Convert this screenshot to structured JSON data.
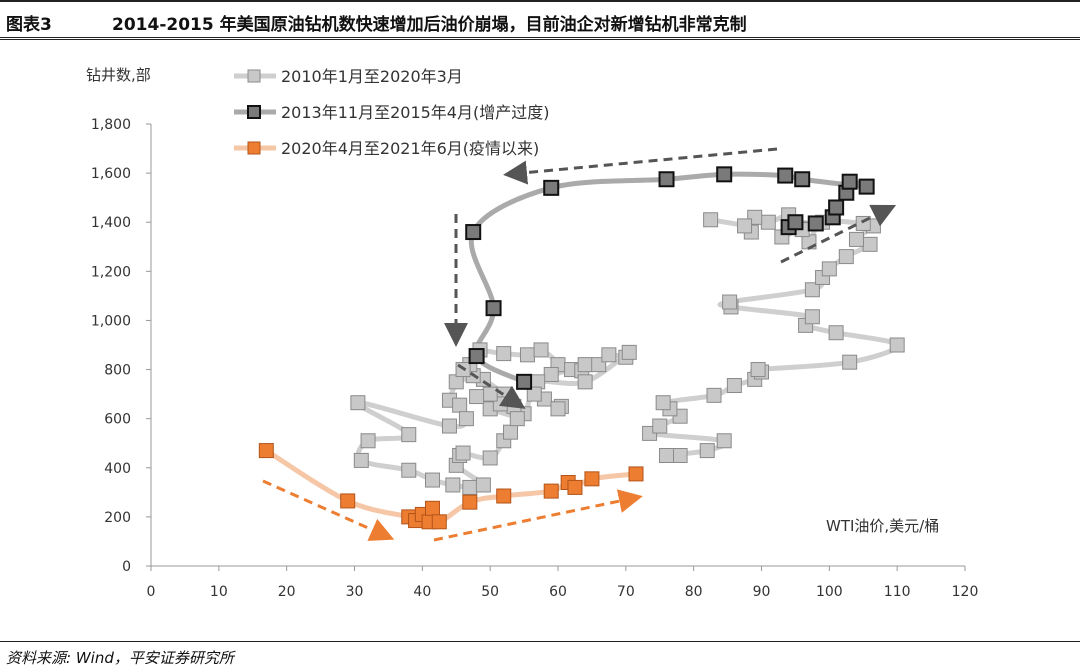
{
  "header": {
    "number": "图表3",
    "title": "2014-2015 年美国原油钻机数快速增加后油价崩塌，目前油企对新增钻机非常克制"
  },
  "footer": {
    "source": "资料来源: Wind，平安证券研究所"
  },
  "chart_data": {
    "type": "scatter",
    "title": "2014-2015 年美国原油钻机数快速增加后油价崩塌，目前油企对新增钻机非常克制",
    "xlabel": "WTI油价,美元/桶",
    "ylabel": "钻井数,部",
    "xlim": [
      0,
      120
    ],
    "ylim": [
      0,
      1800
    ],
    "xticks": [
      0,
      10,
      20,
      30,
      40,
      50,
      60,
      70,
      80,
      90,
      100,
      110,
      120
    ],
    "yticks": [
      0,
      200,
      400,
      600,
      800,
      1000,
      1200,
      1400,
      1600,
      1800
    ],
    "ytick_labels": [
      "0",
      "200",
      "400",
      "600",
      "800",
      "1,000",
      "1,200",
      "1,400",
      "1,600",
      "1,800"
    ],
    "legend_position": "top-left",
    "series": [
      {
        "name": "2010年1月至2020年3月",
        "color": "#c8c8c8",
        "edge": "#8a8a8a",
        "line": "#cfcfcf",
        "points": [
          [
            78,
            450
          ],
          [
            76,
            450
          ],
          [
            82,
            470
          ],
          [
            84.5,
            510
          ],
          [
            73.5,
            540
          ],
          [
            75,
            570
          ],
          [
            78,
            610
          ],
          [
            76.5,
            640
          ],
          [
            75.5,
            665
          ],
          [
            83,
            695
          ],
          [
            86,
            735
          ],
          [
            89,
            760
          ],
          [
            90,
            790
          ],
          [
            89.5,
            800
          ],
          [
            103,
            830
          ],
          [
            110,
            900
          ],
          [
            101,
            950
          ],
          [
            96.5,
            980
          ],
          [
            97.5,
            1015
          ],
          [
            85.5,
            1055
          ],
          [
            85.3,
            1075
          ],
          [
            97.5,
            1125
          ],
          [
            99,
            1175
          ],
          [
            100,
            1210
          ],
          [
            102.5,
            1260
          ],
          [
            106,
            1310
          ],
          [
            104,
            1330
          ],
          [
            106.5,
            1385
          ],
          [
            105,
            1395
          ],
          [
            99,
            1400
          ],
          [
            97,
            1320
          ],
          [
            96,
            1370
          ],
          [
            93,
            1340
          ],
          [
            95,
            1400
          ],
          [
            94,
            1430
          ],
          [
            91,
            1400
          ],
          [
            89,
            1420
          ],
          [
            88.5,
            1360
          ],
          [
            87.5,
            1385
          ],
          [
            82.5,
            1410
          ],
          [
            48.5,
            880
          ],
          [
            52,
            865
          ],
          [
            55.5,
            860
          ],
          [
            57.5,
            880
          ],
          [
            60,
            820
          ],
          [
            59,
            780
          ],
          [
            62,
            800
          ],
          [
            63.5,
            795
          ],
          [
            64,
            820
          ],
          [
            66,
            820
          ],
          [
            67.5,
            860
          ],
          [
            70,
            850
          ],
          [
            70.5,
            870
          ],
          [
            64,
            750
          ],
          [
            57,
            750
          ],
          [
            58,
            680
          ],
          [
            60.5,
            650
          ],
          [
            60,
            640
          ],
          [
            56.5,
            700
          ],
          [
            55,
            620
          ],
          [
            53.5,
            650
          ],
          [
            52,
            700
          ],
          [
            49,
            760
          ],
          [
            47.5,
            775
          ],
          [
            45,
            750
          ],
          [
            47,
            820
          ],
          [
            46,
            800
          ],
          [
            44,
            675
          ],
          [
            45.5,
            655
          ],
          [
            46.5,
            600
          ],
          [
            44,
            570
          ],
          [
            30.5,
            665
          ],
          [
            38,
            535
          ],
          [
            32,
            510
          ],
          [
            31,
            430
          ],
          [
            38,
            390
          ],
          [
            41.5,
            350
          ],
          [
            44.5,
            330
          ],
          [
            47,
            320
          ],
          [
            49,
            330
          ],
          [
            45,
            410
          ],
          [
            45.5,
            450
          ],
          [
            46,
            460
          ],
          [
            50,
            440
          ],
          [
            52,
            510
          ],
          [
            53,
            545
          ],
          [
            54,
            600
          ],
          [
            50,
            640
          ],
          [
            51.5,
            660
          ],
          [
            50,
            700
          ],
          [
            48,
            690
          ]
        ]
      },
      {
        "name": "2013年11月至2015年4月(增产过度)",
        "color": "#7a7a7a",
        "edge": "#111111",
        "line": "#aaaaaa",
        "points": [
          [
            94,
            1380
          ],
          [
            95,
            1400
          ],
          [
            98,
            1395
          ],
          [
            100.5,
            1420
          ],
          [
            101,
            1460
          ],
          [
            102.5,
            1520
          ],
          [
            103,
            1565
          ],
          [
            105.5,
            1545
          ],
          [
            96,
            1575
          ],
          [
            93.5,
            1590
          ],
          [
            84.5,
            1595
          ],
          [
            76,
            1575
          ],
          [
            59,
            1540
          ],
          [
            47.5,
            1360
          ],
          [
            50.5,
            1050
          ],
          [
            48,
            855
          ],
          [
            55,
            750
          ]
        ]
      },
      {
        "name": "2020年4月至2021年6月(疫情以来)",
        "color": "#ed7d31",
        "edge": "#b3541a",
        "line": "#f6c7a6",
        "points": [
          [
            17,
            470
          ],
          [
            29,
            265
          ],
          [
            38,
            200
          ],
          [
            39,
            185
          ],
          [
            40,
            210
          ],
          [
            41,
            180
          ],
          [
            41.5,
            235
          ],
          [
            42.5,
            180
          ],
          [
            47,
            260
          ],
          [
            52,
            285
          ],
          [
            59,
            305
          ],
          [
            61.5,
            340
          ],
          [
            62.5,
            320
          ],
          [
            65,
            355
          ],
          [
            71.5,
            375
          ]
        ]
      }
    ]
  }
}
